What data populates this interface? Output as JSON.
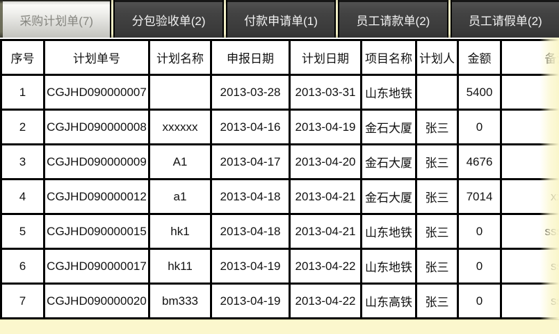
{
  "tabs": [
    {
      "key": "purchase-plan",
      "label": "采购计划单(7)",
      "active": true
    },
    {
      "key": "subcontract-acceptance",
      "label": "分包验收单(2)",
      "active": false
    },
    {
      "key": "payment-request",
      "label": "付款申请单(1)",
      "active": false
    },
    {
      "key": "employee-payment-request",
      "label": "员工请款单(2)",
      "active": false
    },
    {
      "key": "employee-leave-request",
      "label": "员工请假单(2)",
      "active": false
    }
  ],
  "table": {
    "columns": [
      {
        "key": "index",
        "label": "序号"
      },
      {
        "key": "plan-no",
        "label": "计划单号"
      },
      {
        "key": "plan-name",
        "label": "计划名称"
      },
      {
        "key": "report-date",
        "label": "申报日期"
      },
      {
        "key": "plan-date",
        "label": "计划日期"
      },
      {
        "key": "project-name",
        "label": "项目名称"
      },
      {
        "key": "planner",
        "label": "计划人"
      },
      {
        "key": "amount",
        "label": "金额"
      },
      {
        "key": "remark",
        "label": "备注"
      }
    ],
    "rows": [
      [
        "1",
        "CGJHD090000007",
        "",
        "2013-03-28",
        "2013-03-31",
        "山东地铁",
        "",
        "5400",
        ""
      ],
      [
        "2",
        "CGJHD090000008",
        "xxxxxx",
        "2013-04-16",
        "2013-04-19",
        "金石大厦",
        "张三",
        "0",
        ""
      ],
      [
        "3",
        "CGJHD090000009",
        "A1",
        "2013-04-17",
        "2013-04-20",
        "金石大厦",
        "张三",
        "4676",
        ""
      ],
      [
        "4",
        "CGJHD090000012",
        "a1",
        "2013-04-18",
        "2013-04-21",
        "金石大厦",
        "张三",
        "7014",
        "xx"
      ],
      [
        "5",
        "CGJHD090000015",
        "hk1",
        "2013-04-18",
        "2013-04-21",
        "山东地铁",
        "张三",
        "0",
        "ssss"
      ],
      [
        "6",
        "CGJHD090000017",
        "hk11",
        "2013-04-19",
        "2013-04-22",
        "山东地铁",
        "张三",
        "0",
        "ss"
      ],
      [
        "7",
        "CGJHD090000020",
        "bm333",
        "2013-04-19",
        "2013-04-22",
        "山东高铁",
        "张三",
        "0",
        "ss"
      ]
    ]
  },
  "colors": {
    "tab_bar_bg": "#000000",
    "active_tab_text": "#85857f",
    "inactive_tab_bg": "#3e3e3e",
    "inactive_tab_text": "#f2f2f2",
    "tab_separator": "#eeebc0",
    "table_border": "#000000",
    "table_bg": "#ffffff",
    "edge_fade": "#fbf7cd"
  }
}
